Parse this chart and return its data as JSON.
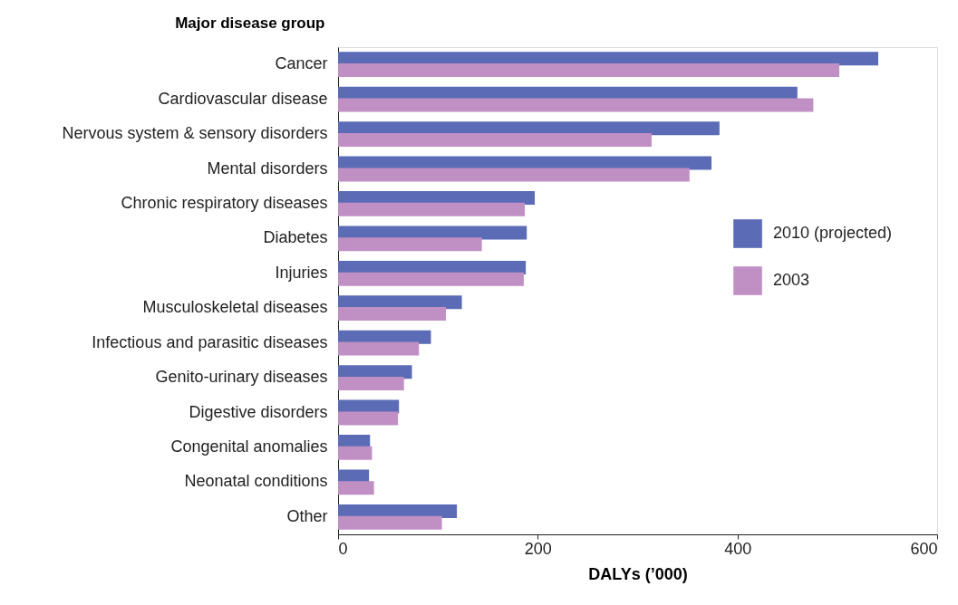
{
  "chart_data": {
    "type": "bar",
    "orientation": "horizontal",
    "xlabel": "DALYs (’000)",
    "ylabel": "Major disease group",
    "categories": [
      "Cancer",
      "Cardiovascular disease",
      "Nervous system & sensory disorders",
      "Mental disorders",
      "Chronic respiratory diseases",
      "Diabetes",
      "Injuries",
      "Musculoskeletal diseases",
      "Infectious and parasitic diseases",
      "Genito-urinary diseases",
      "Digestive disorders",
      "Congenital anomalies",
      "Neonatal conditions",
      "Other"
    ],
    "series": [
      {
        "name": "2010 (projected)",
        "color": "#5b6bb5",
        "values": [
          541,
          460,
          382,
          374,
          197,
          189,
          188,
          124,
          93,
          74,
          61,
          32,
          31,
          119
        ]
      },
      {
        "name": "2003",
        "color": "#c08fc4",
        "values": [
          502,
          476,
          314,
          352,
          187,
          144,
          186,
          108,
          81,
          66,
          60,
          34,
          36,
          104
        ]
      }
    ],
    "xlim": [
      0,
      600
    ],
    "xticks": [
      0,
      200,
      400,
      600
    ],
    "legend": "right",
    "grid": false
  }
}
